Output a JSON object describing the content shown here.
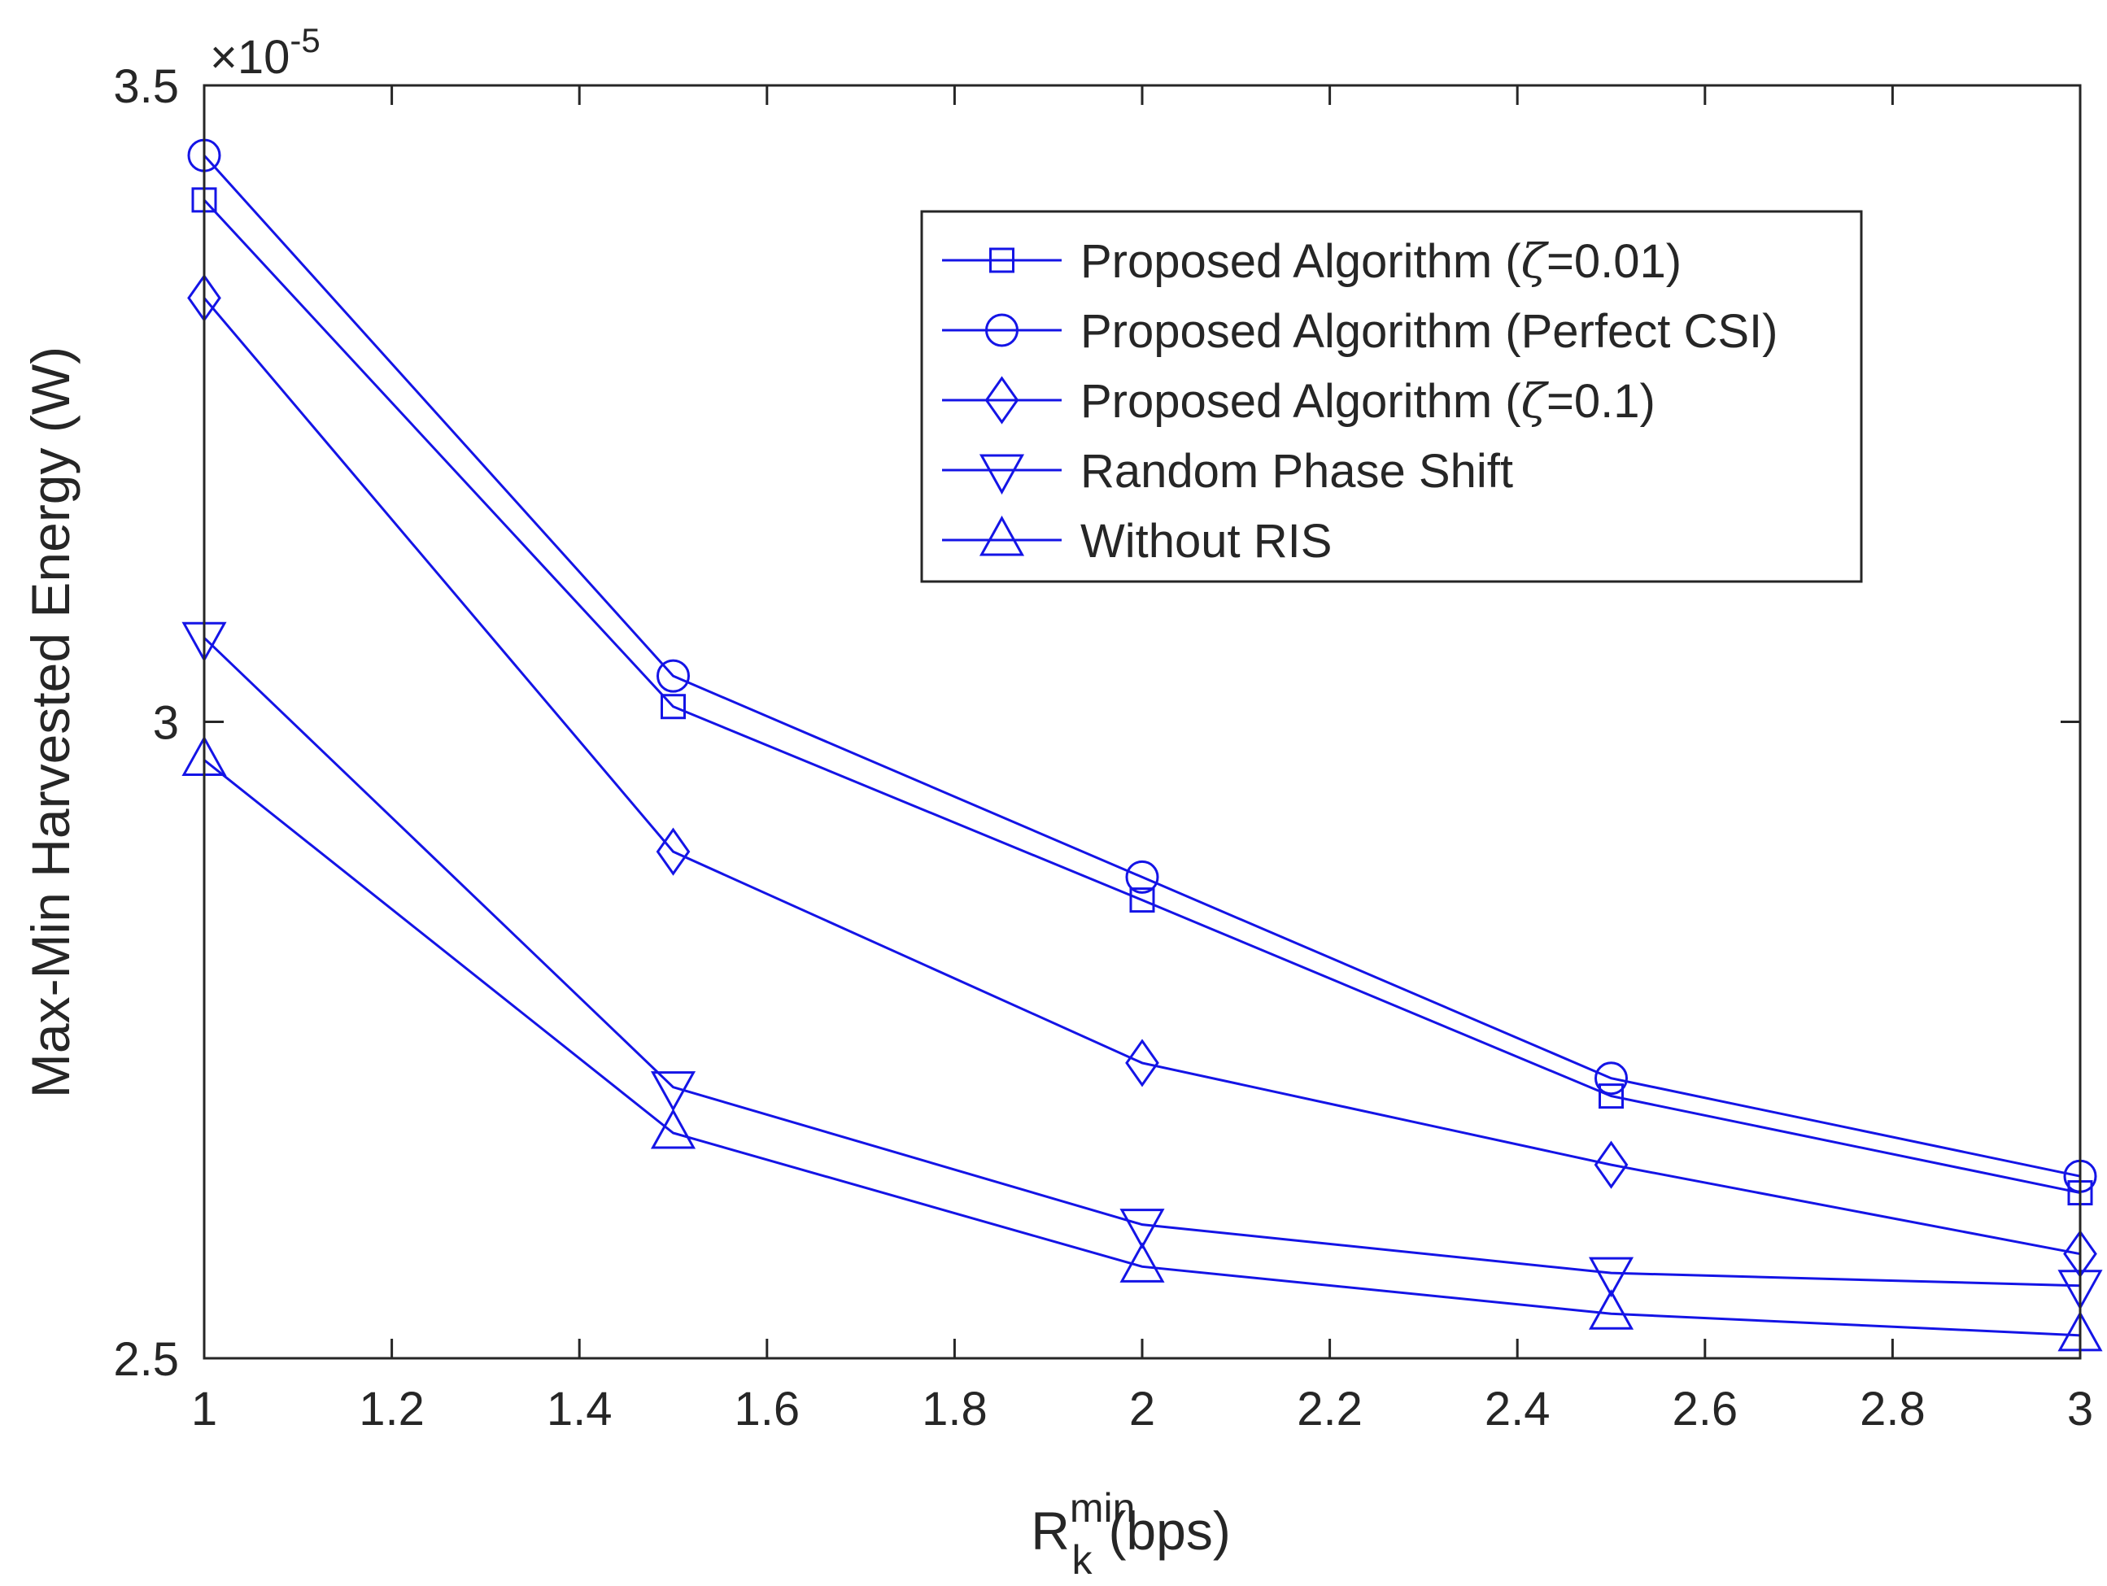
{
  "chart_data": {
    "type": "line",
    "title": "",
    "xlabel": {
      "base": "R",
      "sub": "k",
      "sup": "min",
      "suffix": "(bps)"
    },
    "ylabel": "Max-Min Harvested Energy (W)",
    "exponent": {
      "base": "×10",
      "power": "-5"
    },
    "xlim": [
      1,
      3
    ],
    "ylim": [
      2.5,
      3.5
    ],
    "xticks": [
      1,
      1.2,
      1.4,
      1.6,
      1.8,
      2,
      2.2,
      2.4,
      2.6,
      2.8,
      3
    ],
    "xtick_labels": [
      "1",
      "1.2",
      "1.4",
      "1.6",
      "1.8",
      "2",
      "2.2",
      "2.4",
      "2.6",
      "2.8",
      "3"
    ],
    "yticks": [
      2.5,
      3,
      3.5
    ],
    "ytick_labels": [
      "2.5",
      "3",
      "3.5"
    ],
    "x": [
      1,
      1.5,
      2,
      2.5,
      3
    ],
    "legend_position": "top-right",
    "series": [
      {
        "name": "Proposed Algorithm (ζ=0.01)",
        "label_prefix": "Proposed Algorithm (",
        "label_symbol": "ζ",
        "label_suffix": "=0.01)",
        "marker": "square",
        "values": [
          3.41,
          3.012,
          2.86,
          2.706,
          2.63
        ]
      },
      {
        "name": "Proposed Algorithm (Perfect CSI)",
        "label_prefix": "Proposed Algorithm (Perfect CSI)",
        "label_symbol": "",
        "label_suffix": "",
        "marker": "circle",
        "values": [
          3.445,
          3.036,
          2.878,
          2.72,
          2.643
        ]
      },
      {
        "name": "Proposed Algorithm (ζ=0.1)",
        "label_prefix": "Proposed Algorithm (",
        "label_symbol": "ζ",
        "label_suffix": "=0.1)",
        "marker": "diamond",
        "values": [
          3.333,
          2.898,
          2.732,
          2.652,
          2.582
        ]
      },
      {
        "name": "Random Phase Shift",
        "label_prefix": "Random Phase Shift",
        "label_symbol": "",
        "label_suffix": "",
        "marker": "triangle-down",
        "values": [
          3.066,
          2.713,
          2.605,
          2.567,
          2.557
        ]
      },
      {
        "name": "Without RIS",
        "label_prefix": "Without RIS",
        "label_symbol": "",
        "label_suffix": "",
        "marker": "triangle-up",
        "values": [
          2.97,
          2.677,
          2.572,
          2.535,
          2.518
        ]
      }
    ],
    "colors": {
      "line": "#1414e6",
      "axis": "#262626"
    }
  }
}
